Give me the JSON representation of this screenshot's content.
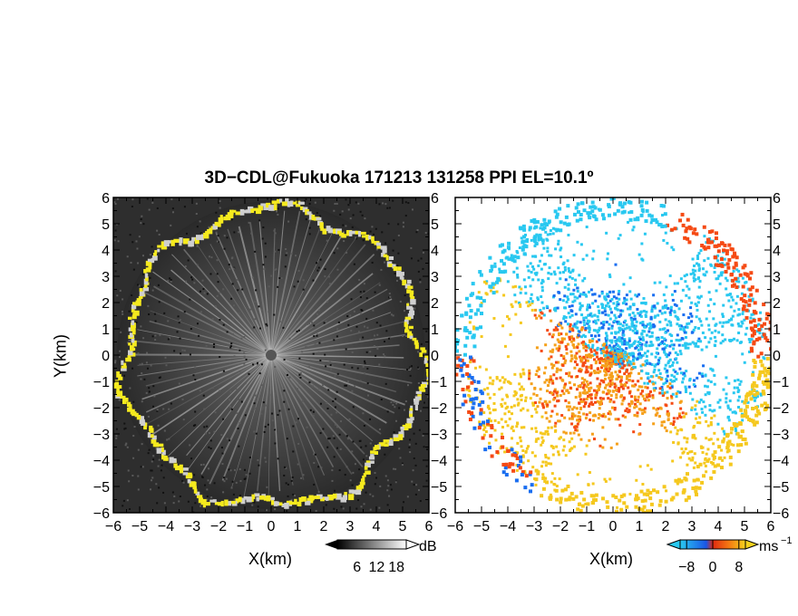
{
  "title": "3D−CDL@Fukuoka 171213 131258 PPI EL=10.1º",
  "chart_data": [
    {
      "type": "heatmap",
      "panel": "left",
      "quantity": "reflectivity",
      "xlabel": "X(km)",
      "ylabel": "Y(km)",
      "xlim": [
        -6,
        6
      ],
      "ylim": [
        -6,
        6
      ],
      "xticks": [
        "−6",
        "−5",
        "−4",
        "−3",
        "−2",
        "−1",
        "0",
        "1",
        "2",
        "3",
        "4",
        "5",
        "6"
      ],
      "yticks": [
        "6",
        "5",
        "4",
        "3",
        "2",
        "1",
        "0",
        "−1",
        "−2",
        "−3",
        "−4",
        "−5",
        "−6"
      ],
      "colorbar": {
        "ticks": [
          "6",
          "12",
          "18"
        ],
        "unit": "dB",
        "range": [
          0,
          21
        ]
      },
      "colors": {
        "background": "#2e2e2e",
        "ring": "#f5ea1e",
        "rays": "#d8d8d8"
      }
    },
    {
      "type": "heatmap",
      "panel": "right",
      "quantity": "radial velocity",
      "xlabel": "X(km)",
      "xlim": [
        -6,
        6
      ],
      "ylim": [
        -6,
        6
      ],
      "xticks": [
        "−6",
        "−5",
        "−4",
        "−3",
        "−2",
        "−1",
        "0",
        "1",
        "2",
        "3",
        "4",
        "5",
        "6"
      ],
      "yticks": [
        "6",
        "5",
        "4",
        "3",
        "2",
        "1",
        "0",
        "−1",
        "−2",
        "−3",
        "−4",
        "−5",
        "−6"
      ],
      "colorbar": {
        "ticks": [
          "−8",
          "0",
          "8"
        ],
        "unit": "ms",
        "unit_exp": "−1",
        "range": [
          -10,
          10
        ]
      },
      "colors": {
        "negative": "#1a6ef0",
        "negative_light": "#29c8f0",
        "positive": "#f54a14",
        "positive_light": "#f5c81e"
      }
    }
  ]
}
